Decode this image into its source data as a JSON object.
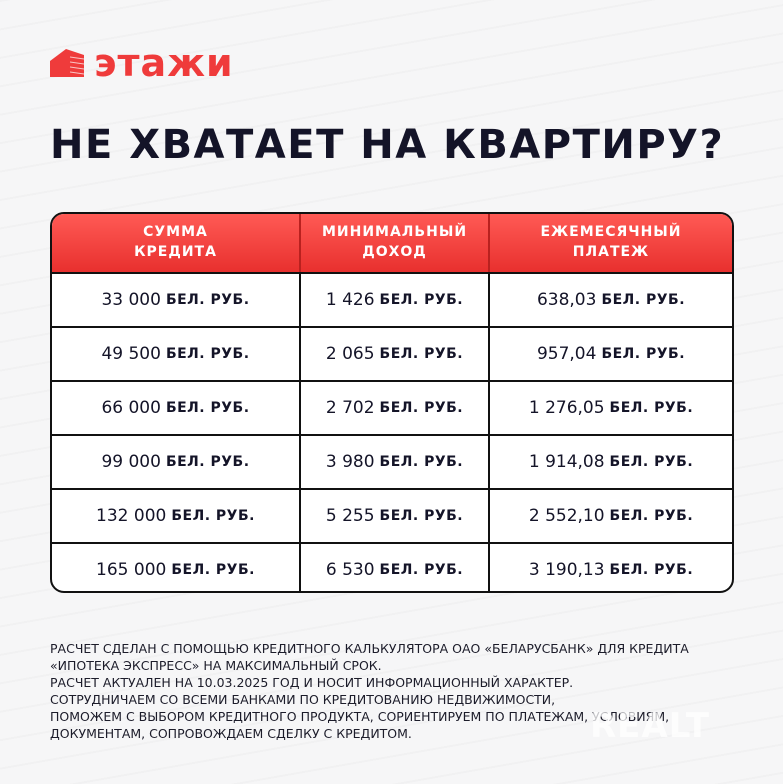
{
  "brand": {
    "name": "этажи",
    "color": "#ef3b3b"
  },
  "title": "НЕ ХВАТАЕТ НА КВАРТИРУ?",
  "table": {
    "headers": [
      "СУММА\nКРЕДИТА",
      "МИНИМАЛЬНЫЙ\nДОХОД",
      "ЕЖЕМЕСЯЧНЫЙ\nПЛАТЕЖ"
    ],
    "unit": "БЕЛ. РУБ.",
    "rows": [
      [
        "33 000",
        "1 426",
        "638,03"
      ],
      [
        "49 500",
        "2 065",
        "957,04"
      ],
      [
        "66 000",
        "2 702",
        "1 276,05"
      ],
      [
        "99 000",
        "3 980",
        "1 914,08"
      ],
      [
        "132 000",
        "5 255",
        "2 552,10"
      ],
      [
        "165 000",
        "6 530",
        "3 190,13"
      ]
    ]
  },
  "footer": [
    "РАСЧЕТ СДЕЛАН С ПОМОЩЬЮ КРЕДИТНОГО КАЛЬКУЛЯТОРА ОАО «БЕЛАРУСБАНК» ДЛЯ КРЕДИТА «ИПОТЕКА ЭКСПРЕСС» НА МАКСИМАЛЬНЫЙ СРОК.",
    "РАСЧЕТ АКТУАЛЕН НА 10.03.2025 ГОД И НОСИТ ИНФОРМАЦИОННЫЙ ХАРАКТЕР.",
    "СОТРУДНИЧАЕМ СО ВСЕМИ БАНКАМИ ПО КРЕДИТОВАНИЮ НЕДВИЖИМОСТИ,",
    "ПОМОЖЕМ С ВЫБОРОМ КРЕДИТНОГО ПРОДУКТА, СОРИЕНТИРУЕМ ПО ПЛАТЕЖАМ, УСЛОВИЯМ, ДОКУМЕНТАМ, СОПРОВОЖДАЕМ СДЕЛКУ С КРЕДИТОМ."
  ],
  "watermark": "REALT"
}
